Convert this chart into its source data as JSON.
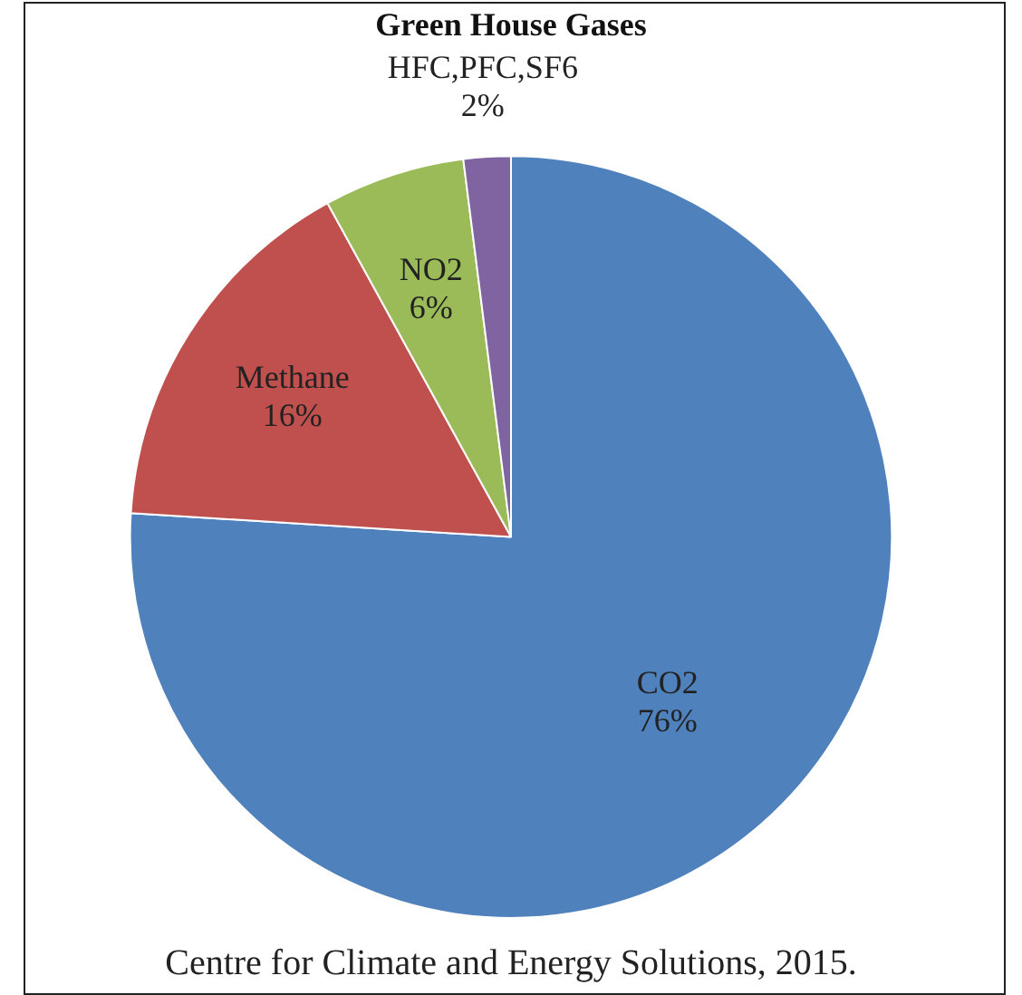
{
  "chart_data": {
    "type": "pie",
    "title": "Green House Gases",
    "categories": [
      "CO2",
      "Methane",
      "NO2",
      "HFC,PFC,SF6"
    ],
    "values": [
      76,
      16,
      6,
      2
    ],
    "colors": [
      "#4f81bd",
      "#c0504d",
      "#9bbb59",
      "#8064a2"
    ],
    "value_labels": [
      "76%",
      "16%",
      "6%",
      "2%"
    ],
    "legend": false,
    "annotations": [
      "Centre for Climate and Energy Solutions, 2015."
    ]
  }
}
